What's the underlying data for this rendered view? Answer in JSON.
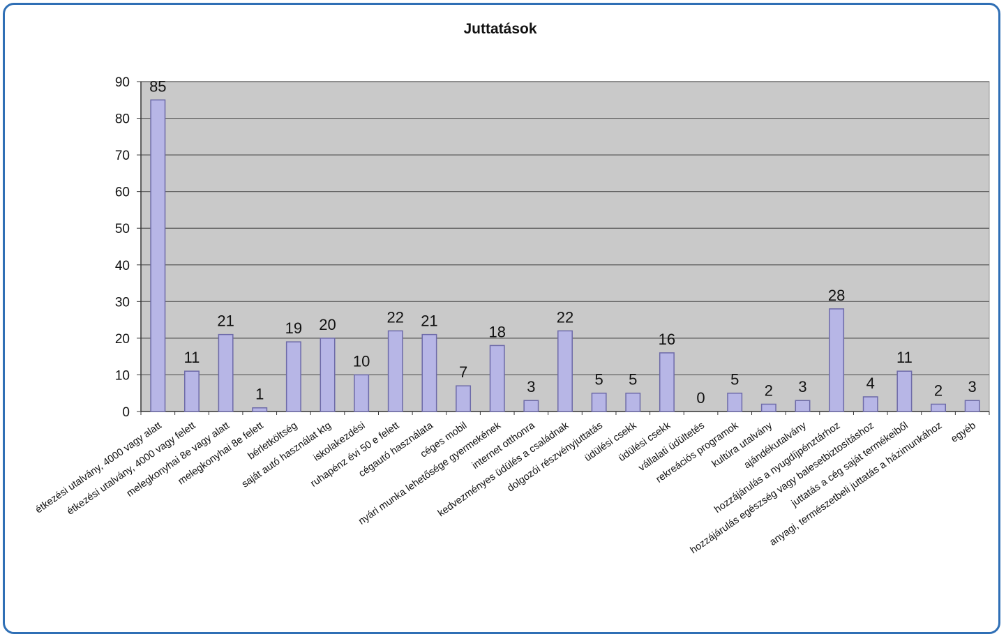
{
  "colors": {
    "frame_border": "#2f6fb5",
    "plot_background": "#c9c9c9",
    "bar_fill": "#b7b6e6",
    "bar_stroke": "#6d6aa8",
    "gridline": "#555555",
    "text": "#111111"
  },
  "chart_data": {
    "type": "bar",
    "title": "Juttatások",
    "xlabel": "",
    "ylabel": "",
    "ylim": [
      0,
      90
    ],
    "yticks": [
      0,
      10,
      20,
      30,
      40,
      50,
      60,
      70,
      80,
      90
    ],
    "grid": true,
    "legend": "none",
    "categories": [
      "étkezési utalvány, 4000 vagy alatt",
      "étkezési utalvány, 4000 vagy felett",
      "melegkonyhai 8e vagy alatt",
      "melegkonyhai 8e felett",
      "bérletköltség",
      "saját autó használat ktg",
      "iskolakezdési",
      "ruhapénz évi 50 e felett",
      "cégautó használata",
      "céges mobil",
      "nyári munka lehetősége gyermekének",
      "internet otthonra",
      "kedvezményes üdülés a családnak",
      "dolgozói részvényjuttatás",
      "üdülési csekk",
      "üdülési csekk",
      "vállalati üdültetés",
      "rekreációs programok",
      "kultúra utalvány",
      "ajándékutalvány",
      "hozzájárulás a nyugdíjpénztárhoz",
      "hozzájárulás egészség vagy balesetbiztosításhoz",
      "juttatás a cég saját termékeiből",
      "anyagi, természetbeli juttatás a házimunkához",
      "egyéb"
    ],
    "values": [
      85,
      11,
      21,
      1,
      19,
      20,
      10,
      22,
      21,
      7,
      18,
      3,
      22,
      5,
      5,
      16,
      0,
      5,
      2,
      3,
      28,
      4,
      11,
      2,
      3
    ],
    "data_labels": [
      "85",
      "11",
      "21",
      "1",
      "19",
      "20",
      "10",
      "22",
      "21",
      "7",
      "18",
      "3",
      "22",
      "5",
      "5",
      "16",
      "0",
      "5",
      "2",
      "3",
      "28",
      "4",
      "11",
      "2",
      "3"
    ]
  }
}
